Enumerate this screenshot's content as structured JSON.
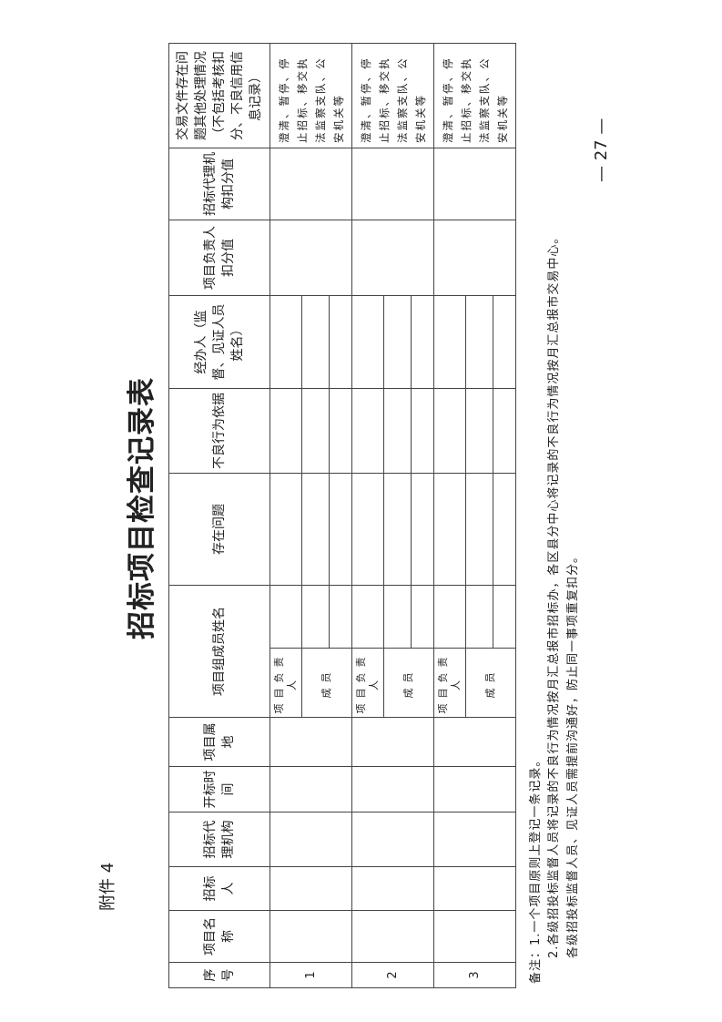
{
  "annex": "附件 4",
  "title": "招标项目检查记录表",
  "table": {
    "headers": {
      "seq": "序号",
      "project_name": "项目名称",
      "tenderer": "招标人",
      "agency": "招标代理机构",
      "open_time": "开标时间",
      "location": "项目属地",
      "members": "项目组成员姓名",
      "issues": "存在问题",
      "basis": "不良行为依据",
      "handler": "经办人（监督、见证人员姓名）",
      "leader_deduct": "项目负责人扣分值",
      "agency_deduct": "招标代理机构扣分值",
      "other": "交易文件存在问题其他处理情况（不包括考核扣分、不良信用信息记录）"
    },
    "member_labels": {
      "leader": "项目负责人",
      "member": "成员"
    },
    "rows": [
      {
        "seq": "1",
        "action": "澄清、暂停、停止招标、移交执法监察支队、公安机关等"
      },
      {
        "seq": "2",
        "action": "澄清、暂停、停止招标、移交执法监察支队、公安机关等"
      },
      {
        "seq": "3",
        "action": "澄清、暂停、停止招标、移交执法监察支队、公安机关等"
      }
    ]
  },
  "notes": [
    "备注：1.一个项目原则上登记一条记录。",
    "2.各级招投标监督人员将记录的不良行为情况按月汇总报市招标办，各区县分中心将记录的不良行为情况按月汇总报市交易中心。",
    "各级招投标监督人员、见证人员需提前沟通好，防止同一事项重复扣分。"
  ],
  "page_number": "— 27 —"
}
